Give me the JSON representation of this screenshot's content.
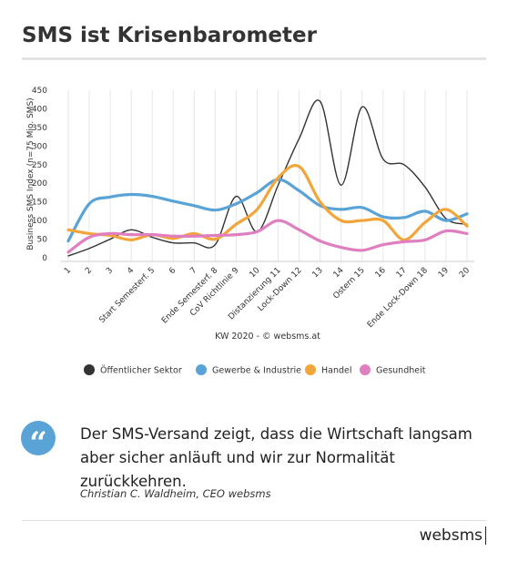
{
  "chart_data": {
    "type": "line",
    "title": "SMS ist Krisenbarometer",
    "y_label": "Business SMS Index (n=75 Mio. SMS)",
    "x_label": "KW 2020 - © websms.at",
    "categories": [
      "1",
      "2",
      "3",
      "4",
      "Start Semesterf. 5",
      "6",
      "7",
      "Ende Semesterf. 8",
      "CoV Richtlinie 9",
      "10",
      "Distanzierung 11",
      "Lock-Down 12",
      "13",
      "14",
      "Ostern 15",
      "16",
      "17",
      "Ende Lock-Down 18",
      "19",
      "20"
    ],
    "ylim": [
      0,
      450
    ],
    "yticks": [
      0,
      50,
      100,
      150,
      200,
      250,
      300,
      350,
      400,
      450
    ],
    "grid": true,
    "legend": "bottom",
    "series": [
      {
        "name": "Öffentlicher Sektor",
        "color": "#333333",
        "values": [
          5,
          25,
          50,
          75,
          55,
          40,
          40,
          35,
          165,
          70,
          195,
          320,
          420,
          195,
          405,
          265,
          250,
          190,
          105,
          90
        ]
      },
      {
        "name": "Gewerbe & Industrie",
        "color": "#5aa3d6",
        "values": [
          45,
          145,
          163,
          170,
          165,
          152,
          140,
          128,
          145,
          175,
          210,
          180,
          140,
          130,
          135,
          110,
          108,
          125,
          100,
          118
        ]
      },
      {
        "name": "Handel",
        "color": "#f2a53a",
        "values": [
          75,
          65,
          60,
          48,
          62,
          52,
          65,
          50,
          90,
          130,
          215,
          245,
          150,
          100,
          100,
          100,
          48,
          95,
          130,
          85
        ]
      },
      {
        "name": "Gesundheit",
        "color": "#e07fbf",
        "values": [
          15,
          55,
          65,
          62,
          62,
          58,
          58,
          60,
          62,
          70,
          100,
          75,
          45,
          28,
          20,
          35,
          43,
          48,
          72,
          65
        ]
      }
    ]
  },
  "quote": {
    "text": "Der SMS-Versand zeigt, dass die Wirtschaft langsam aber sicher anläuft und wir zur Normalität zurückkehren.",
    "source": "Christian C. Waldheim, CEO websms"
  },
  "footer": {
    "brand": "websms"
  }
}
